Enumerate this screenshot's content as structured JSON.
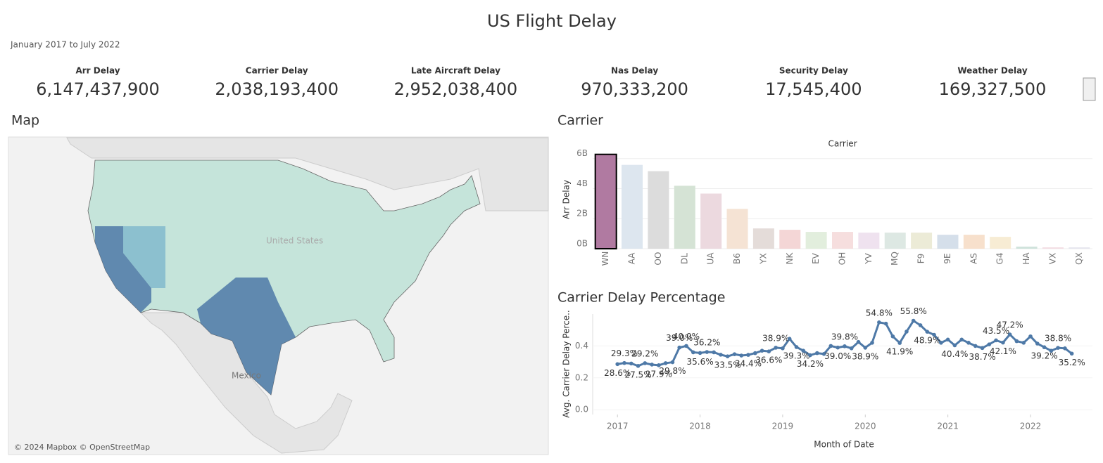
{
  "header": {
    "title": "US Flight Delay",
    "subtitle": "January 2017 to July 2022"
  },
  "kpis": [
    {
      "label": "Arr Delay",
      "value": "6,147,437,900"
    },
    {
      "label": "Carrier Delay",
      "value": "2,038,193,400"
    },
    {
      "label": "Late Aircraft Delay",
      "value": "2,952,038,400"
    },
    {
      "label": "Nas Delay",
      "value": "970,333,200"
    },
    {
      "label": "Security Delay",
      "value": "17,545,400"
    },
    {
      "label": "Weather Delay",
      "value": "169,327,500"
    }
  ],
  "map": {
    "title": "Map",
    "labels": [
      "United States",
      "Mexico"
    ],
    "attribution": "© 2024 Mapbox © OpenStreetMap"
  },
  "chart_data": [
    {
      "type": "bar",
      "section_title": "Carrier",
      "title": "Carrier",
      "y_label": "Arr Delay",
      "categories": [
        "WN",
        "AA",
        "OO",
        "DL",
        "UA",
        "B6",
        "YX",
        "NK",
        "EV",
        "OH",
        "YV",
        "MQ",
        "F9",
        "9E",
        "AS",
        "G4",
        "HA",
        "VX",
        "QX"
      ],
      "values": [
        6.28,
        5.58,
        5.16,
        4.19,
        3.67,
        2.65,
        1.35,
        1.26,
        1.12,
        1.12,
        1.07,
        1.07,
        1.07,
        0.93,
        0.93,
        0.79,
        0.14,
        0.09,
        0.09
      ],
      "colors": [
        "#b07aa1",
        "#dde6ef",
        "#dcdcdc",
        "#d5e3d5",
        "#ecd9df",
        "#f5e3d4",
        "#e4dcd9",
        "#f4d6d6",
        "#e2eedd",
        "#f6dede",
        "#efe2ef",
        "#dde8e3",
        "#ecebd7",
        "#d5dfea",
        "#f7e0cc",
        "#f7ecd4",
        "#d0e3dc",
        "#f4dde3",
        "#e6e6ee"
      ],
      "selected_category": "WN",
      "ylim": [
        0,
        6.5
      ],
      "yticks": [
        {
          "value": 0,
          "label": "0B"
        },
        {
          "value": 2,
          "label": "2B"
        },
        {
          "value": 4,
          "label": "4B"
        },
        {
          "value": 6,
          "label": "6B"
        }
      ],
      "grid": true
    },
    {
      "type": "line",
      "section_title": "Carrier Delay Percentage",
      "x_label": "Month of Date",
      "y_label": "Avg. Carrier Delay Perce..",
      "color": "#4e79a7",
      "x": [
        2017.0,
        2017.083,
        2017.167,
        2017.25,
        2017.333,
        2017.417,
        2017.5,
        2017.583,
        2017.667,
        2017.75,
        2017.833,
        2017.917,
        2018.0,
        2018.083,
        2018.167,
        2018.25,
        2018.333,
        2018.417,
        2018.5,
        2018.583,
        2018.667,
        2018.75,
        2018.833,
        2018.917,
        2019.0,
        2019.083,
        2019.167,
        2019.25,
        2019.333,
        2019.417,
        2019.5,
        2019.583,
        2019.667,
        2019.75,
        2019.833,
        2019.917,
        2020.0,
        2020.083,
        2020.167,
        2020.25,
        2020.333,
        2020.417,
        2020.5,
        2020.583,
        2020.667,
        2020.75,
        2020.833,
        2020.917,
        2021.0,
        2021.083,
        2021.167,
        2021.25,
        2021.333,
        2021.417,
        2021.5,
        2021.583,
        2021.667,
        2021.75,
        2021.833,
        2021.917,
        2022.0,
        2022.083,
        2022.167,
        2022.25,
        2022.333,
        2022.417,
        2022.5
      ],
      "values": [
        0.286,
        0.293,
        0.29,
        0.275,
        0.292,
        0.283,
        0.279,
        0.292,
        0.298,
        0.39,
        0.4,
        0.36,
        0.356,
        0.362,
        0.36,
        0.345,
        0.335,
        0.348,
        0.34,
        0.344,
        0.355,
        0.37,
        0.366,
        0.389,
        0.385,
        0.445,
        0.393,
        0.37,
        0.342,
        0.355,
        0.35,
        0.4,
        0.39,
        0.398,
        0.385,
        0.425,
        0.389,
        0.42,
        0.548,
        0.54,
        0.46,
        0.419,
        0.49,
        0.558,
        0.53,
        0.489,
        0.47,
        0.42,
        0.44,
        0.404,
        0.44,
        0.42,
        0.4,
        0.387,
        0.41,
        0.435,
        0.421,
        0.472,
        0.43,
        0.42,
        0.46,
        0.415,
        0.392,
        0.37,
        0.388,
        0.385,
        0.352
      ],
      "value_labels": [
        "28.6%",
        "29.3%",
        null,
        "27.5%",
        "29.2%",
        null,
        "27.9%",
        null,
        "29.8%",
        "39.0%",
        "40.0%",
        null,
        "35.6%",
        "36.2%",
        null,
        null,
        "33.5%",
        null,
        null,
        "34.4%",
        null,
        null,
        "36.6%",
        "38.9%",
        null,
        null,
        "39.3%",
        null,
        "34.2%",
        null,
        null,
        null,
        "39.0%",
        "39.8%",
        null,
        null,
        "38.9%",
        null,
        "54.8%",
        null,
        null,
        "41.9%",
        null,
        "55.8%",
        null,
        "48.9%",
        null,
        null,
        null,
        "40.4%",
        null,
        null,
        null,
        "38.7%",
        null,
        "43.5%",
        "42.1%",
        "47.2%",
        null,
        null,
        null,
        null,
        "39.2%",
        null,
        "38.8%",
        null,
        "35.2%"
      ],
      "xlim": [
        2016.7,
        2022.75
      ],
      "xticks": [
        2017,
        2018,
        2019,
        2020,
        2021,
        2022
      ],
      "ylim": [
        -0.03,
        0.6
      ],
      "yticks": [
        {
          "value": 0,
          "label": "0.0"
        },
        {
          "value": 0.2,
          "label": "0.2"
        },
        {
          "value": 0.4,
          "label": "0.4"
        }
      ],
      "grid": true
    }
  ]
}
